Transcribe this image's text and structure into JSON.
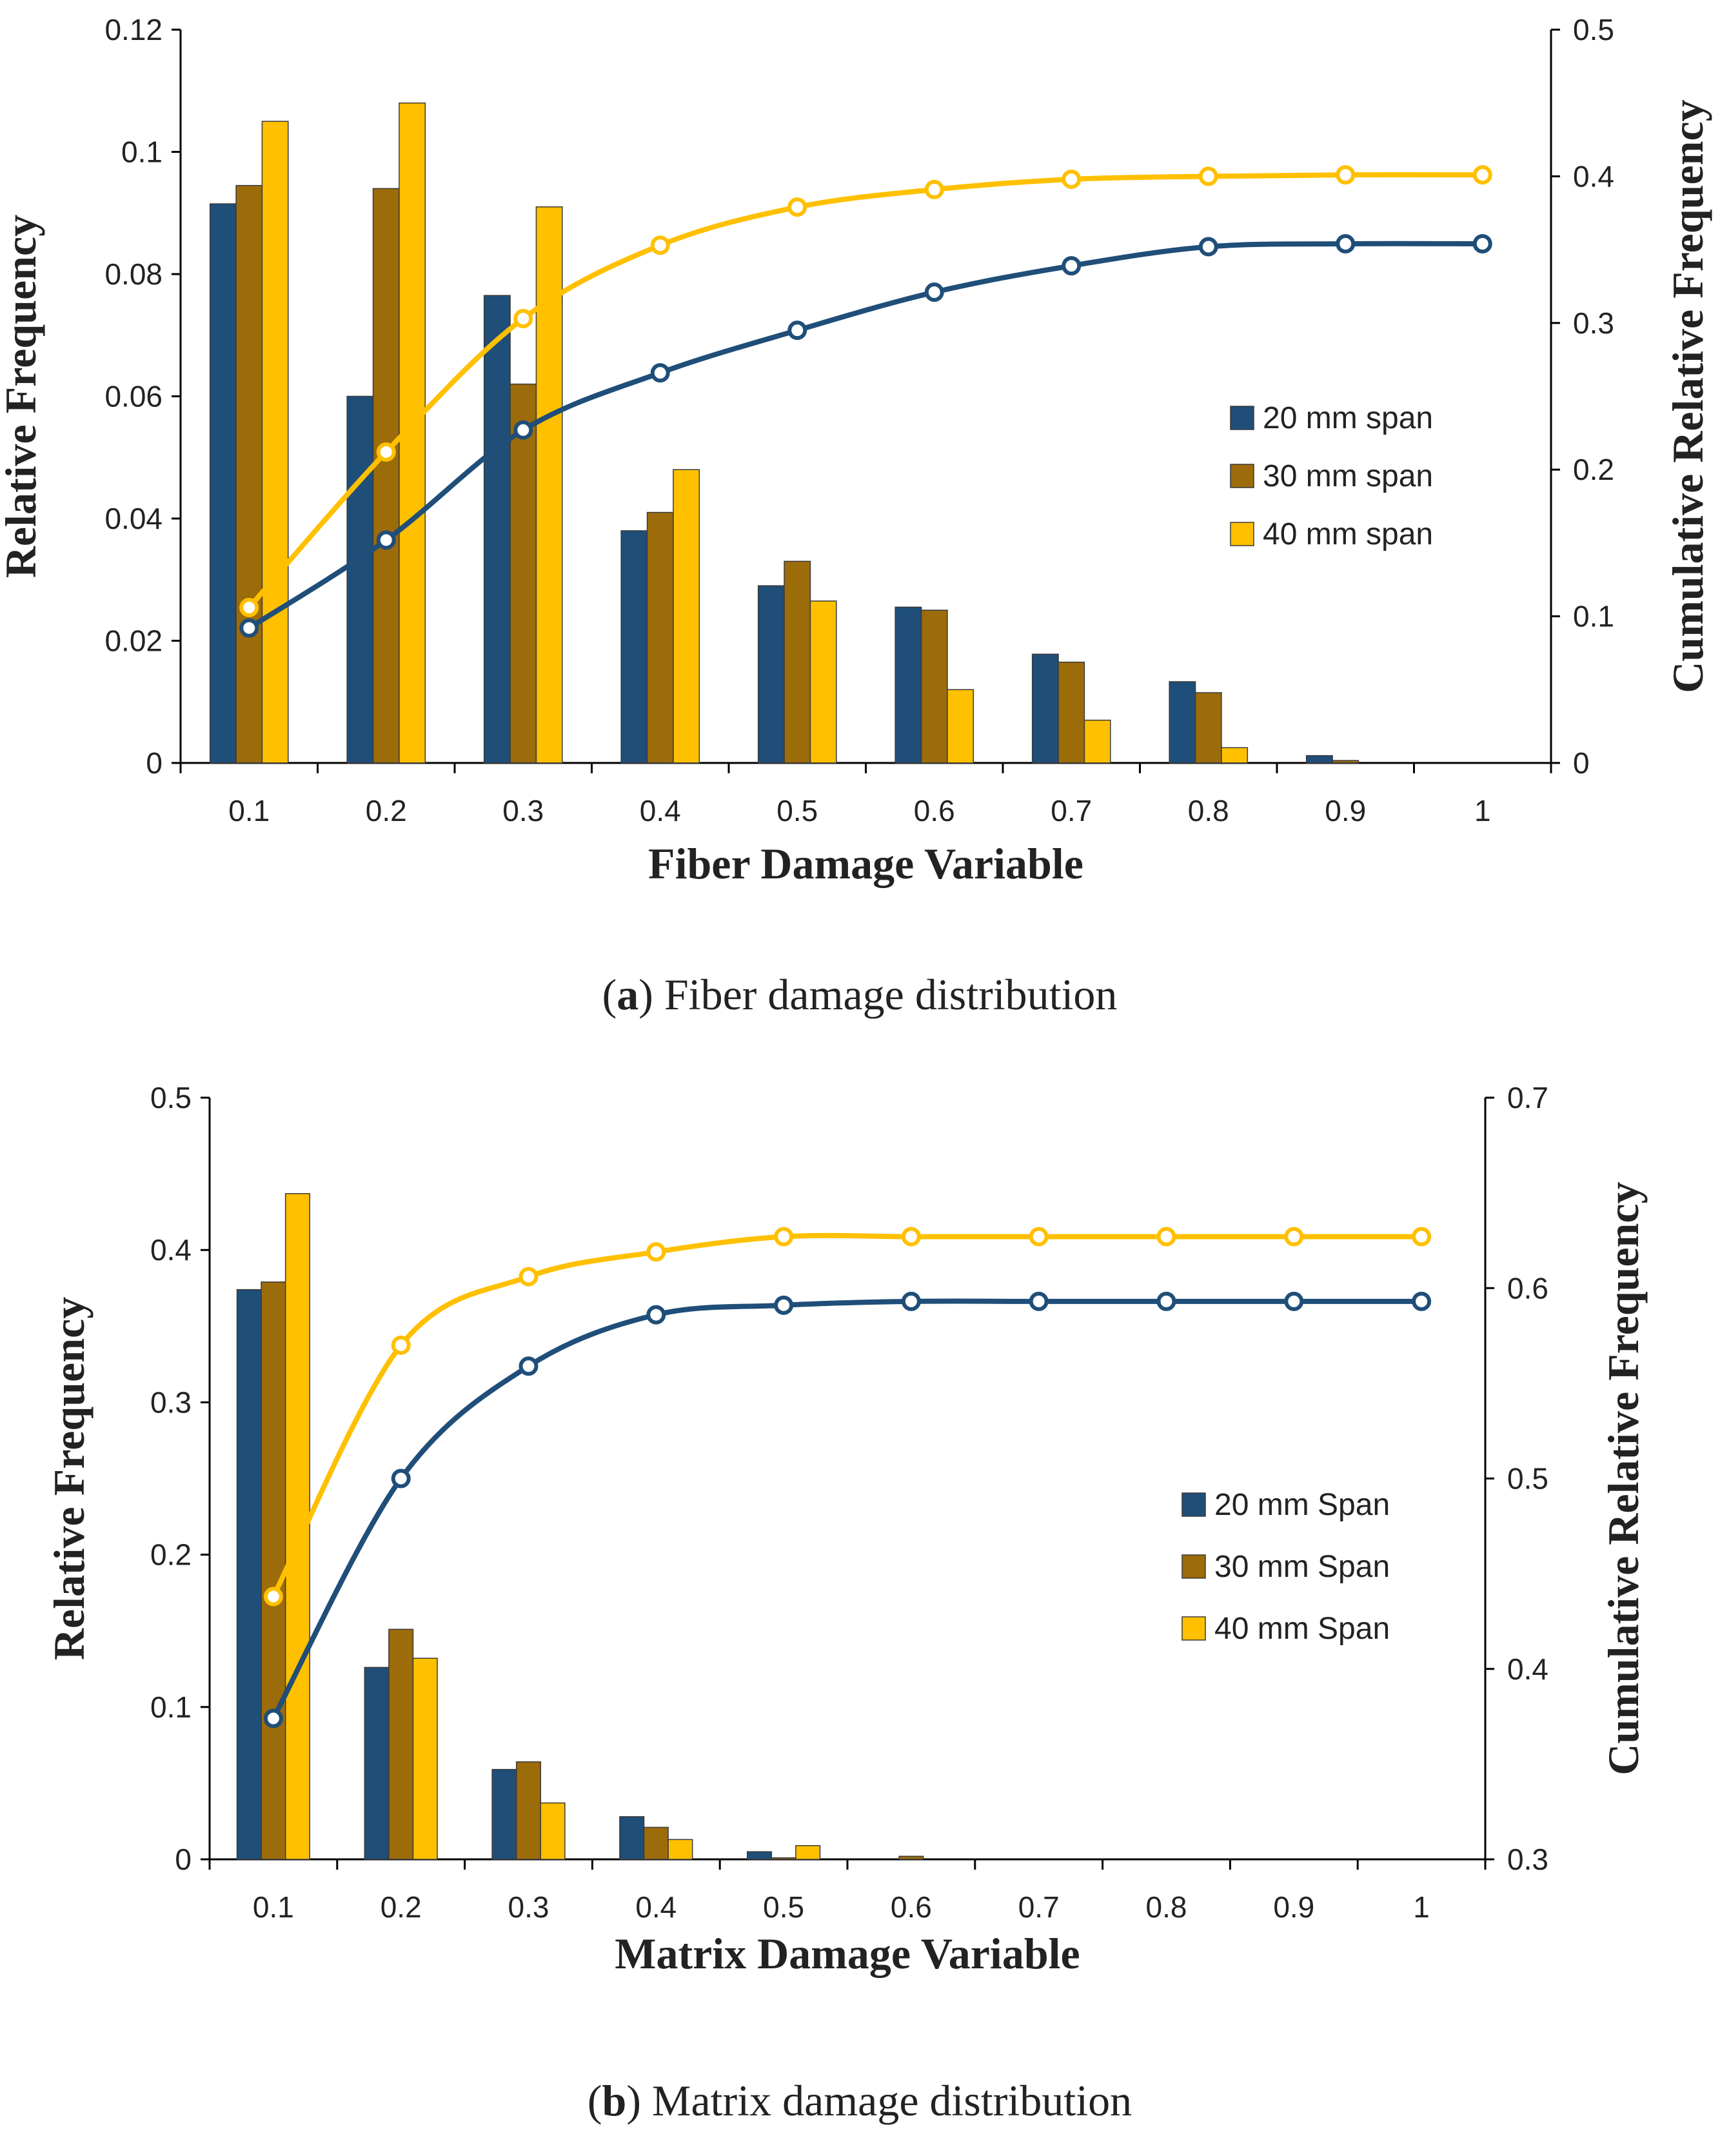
{
  "chart_data": [
    {
      "type": "bar",
      "caption_letter": "a",
      "caption_text": "Fiber damage distribution",
      "xlabel": "Fiber Damage Variable",
      "ylabel": "Relative Frequency",
      "y2label": "Cumulative Relative Frequency",
      "categories": [
        "0.1",
        "0.2",
        "0.3",
        "0.4",
        "0.5",
        "0.6",
        "0.7",
        "0.8",
        "0.9",
        "1"
      ],
      "ylim": [
        0,
        0.12
      ],
      "yticks": [
        "0",
        "0.02",
        "0.04",
        "0.06",
        "0.08",
        "0.1",
        "0.12"
      ],
      "y2lim": [
        0,
        0.5
      ],
      "y2ticks": [
        "0",
        "0.1",
        "0.2",
        "0.3",
        "0.4",
        "0.5"
      ],
      "series": [
        {
          "name": "20 mm span",
          "color": "#1F4E79",
          "values": [
            0.0915,
            0.06,
            0.0765,
            0.038,
            0.029,
            0.0255,
            0.0178,
            0.0133,
            0.0012,
            0
          ]
        },
        {
          "name": "30 mm span",
          "color": "#9C6B0A",
          "values": [
            0.0945,
            0.094,
            0.062,
            0.041,
            0.033,
            0.025,
            0.0165,
            0.0115,
            0.0004,
            0
          ]
        },
        {
          "name": "40 mm span",
          "color": "#FFC000",
          "values": [
            0.105,
            0.108,
            0.091,
            0.048,
            0.0265,
            0.012,
            0.007,
            0.0025,
            0,
            0
          ]
        }
      ],
      "cumulative_series": [
        {
          "name": "20 mm span",
          "color": "#1F4E79",
          "values": [
            0.092,
            0.152,
            0.227,
            0.266,
            0.295,
            0.321,
            0.339,
            0.352,
            0.354,
            0.354
          ]
        },
        {
          "name": "30 mm span",
          "color": "#FFC000",
          "values": [
            0.106,
            0.212,
            0.303,
            0.353,
            0.379,
            0.391,
            0.398,
            0.4,
            0.401,
            0.401
          ]
        }
      ]
    },
    {
      "type": "bar",
      "caption_letter": "b",
      "caption_text": "Matrix damage distribution",
      "xlabel": "Matrix Damage Variable",
      "ylabel": "Relative Frequency",
      "y2label": "Cumulative Relative Frequency",
      "categories": [
        "0.1",
        "0.2",
        "0.3",
        "0.4",
        "0.5",
        "0.6",
        "0.7",
        "0.8",
        "0.9",
        "1"
      ],
      "ylim": [
        0,
        0.5
      ],
      "yticks": [
        "0",
        "0.1",
        "0.2",
        "0.3",
        "0.4",
        "0.5"
      ],
      "y2lim": [
        0.3,
        0.7
      ],
      "y2ticks": [
        "0.3",
        "0.4",
        "0.5",
        "0.6",
        "0.7"
      ],
      "series": [
        {
          "name": "20 mm Span",
          "color": "#1F4E79",
          "values": [
            0.374,
            0.126,
            0.059,
            0.028,
            0.005,
            0,
            0,
            0,
            0,
            0
          ]
        },
        {
          "name": "30 mm Span",
          "color": "#9C6B0A",
          "values": [
            0.379,
            0.151,
            0.064,
            0.021,
            0.001,
            0.002,
            0,
            0,
            0,
            0
          ]
        },
        {
          "name": "40 mm Span",
          "color": "#FFC000",
          "values": [
            0.437,
            0.132,
            0.037,
            0.013,
            0.009,
            0,
            0,
            0,
            0,
            0
          ]
        }
      ],
      "cumulative_series": [
        {
          "name": "20 mm Span",
          "color": "#1F4E79",
          "values": [
            0.374,
            0.5,
            0.559,
            0.586,
            0.591,
            0.593,
            0.593,
            0.593,
            0.593,
            0.593
          ]
        },
        {
          "name": "40 mm Span",
          "color": "#FFC000",
          "values": [
            0.438,
            0.57,
            0.606,
            0.619,
            0.627,
            0.627,
            0.627,
            0.627,
            0.627,
            0.627
          ]
        }
      ]
    }
  ]
}
